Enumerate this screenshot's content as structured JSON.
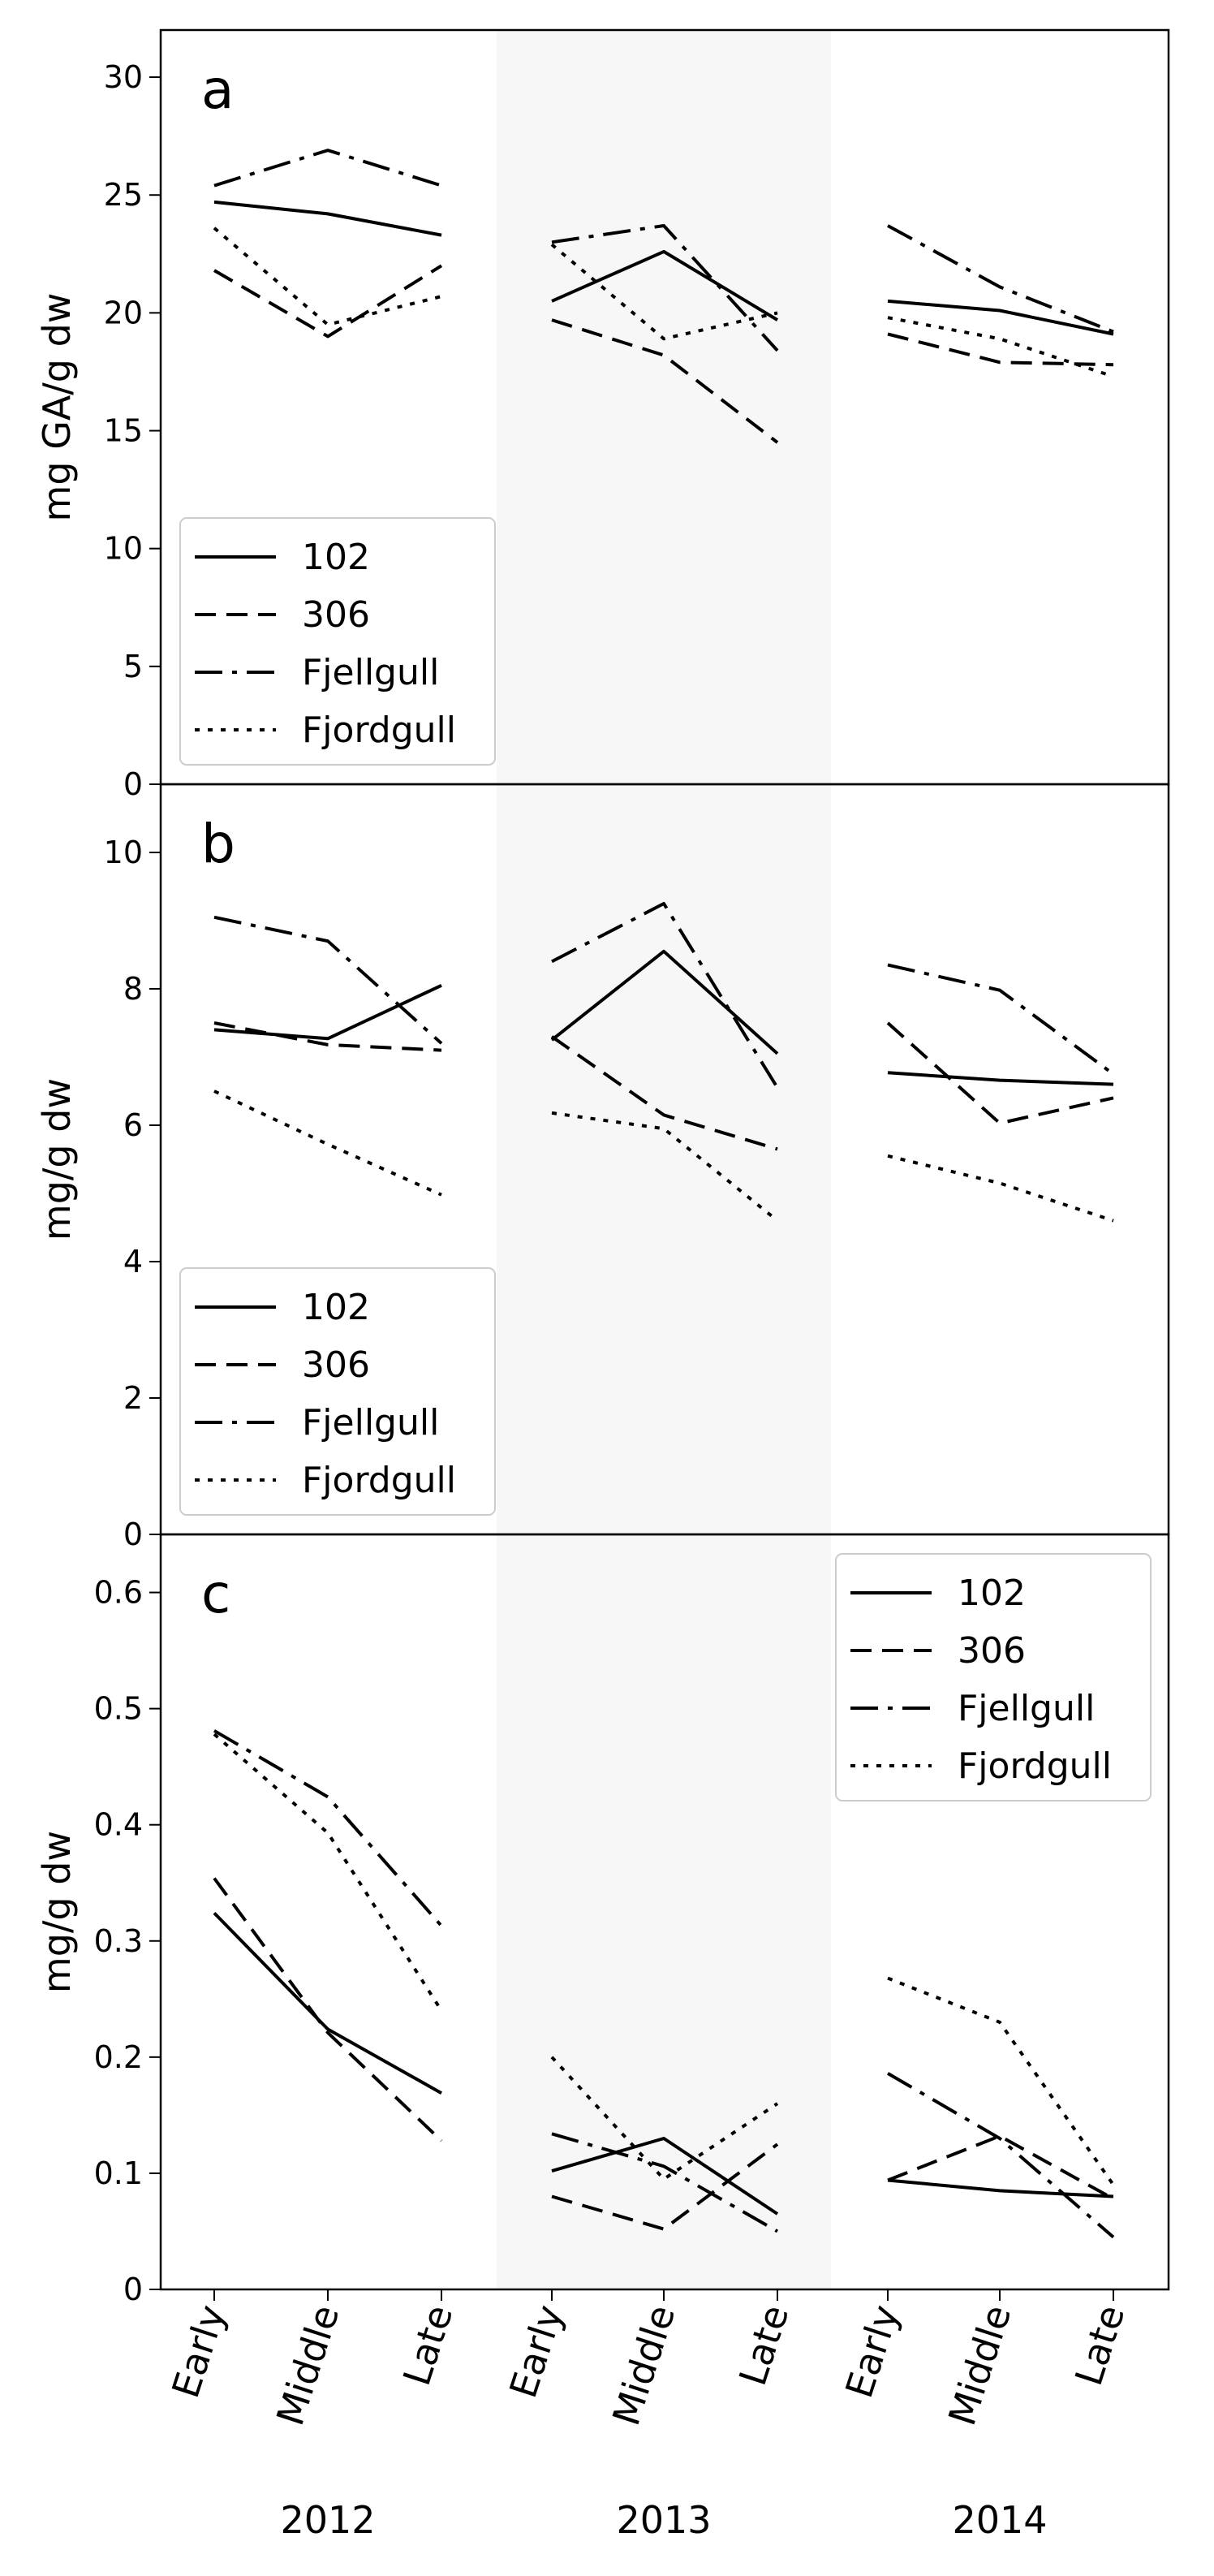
{
  "colors": {
    "line": "#000000",
    "shade": "#f7f7f7",
    "legend_border": "#cccccc"
  },
  "categories": [
    "Early",
    "Middle",
    "Late"
  ],
  "years": [
    "2012",
    "2013",
    "2014"
  ],
  "series_names": [
    "102",
    "306",
    "Fjellgull",
    "Fjordgull"
  ],
  "chart_data": [
    {
      "type": "line",
      "panel": "a",
      "ylabel": "mg GA/g dw",
      "ylim": [
        0,
        32
      ],
      "yticks": [
        0,
        5,
        10,
        15,
        20,
        25,
        30
      ],
      "legend": "lower-left",
      "series": [
        {
          "name": "102",
          "dash": "solid",
          "values": [
            [
              24.7,
              24.2,
              23.3
            ],
            [
              20.5,
              22.6,
              19.7
            ],
            [
              20.5,
              20.1,
              19.1
            ]
          ]
        },
        {
          "name": "306",
          "dash": "dashed",
          "values": [
            [
              21.8,
              19.0,
              22.0
            ],
            [
              19.7,
              18.2,
              14.5
            ],
            [
              19.1,
              17.9,
              17.8
            ]
          ]
        },
        {
          "name": "Fjellgull",
          "dash": "dashdot",
          "values": [
            [
              25.4,
              26.9,
              25.4
            ],
            [
              23.0,
              23.7,
              18.4
            ],
            [
              23.7,
              21.1,
              19.2
            ]
          ]
        },
        {
          "name": "Fjordgull",
          "dash": "dotted",
          "values": [
            [
              23.6,
              19.5,
              20.7
            ],
            [
              22.9,
              18.9,
              20.0
            ],
            [
              19.8,
              18.9,
              17.3
            ]
          ]
        }
      ]
    },
    {
      "type": "line",
      "panel": "b",
      "ylabel": "mg/g dw",
      "ylim": [
        0,
        11
      ],
      "yticks": [
        0,
        2,
        4,
        6,
        8,
        10
      ],
      "legend": "lower-left",
      "series": [
        {
          "name": "102",
          "dash": "solid",
          "values": [
            [
              7.4,
              7.27,
              8.05
            ],
            [
              7.25,
              8.55,
              7.05
            ],
            [
              6.77,
              6.66,
              6.6
            ]
          ]
        },
        {
          "name": "306",
          "dash": "dashed",
          "values": [
            [
              7.5,
              7.18,
              7.1
            ],
            [
              7.3,
              6.15,
              5.65
            ],
            [
              7.5,
              6.03,
              6.4
            ]
          ]
        },
        {
          "name": "Fjellgull",
          "dash": "dashdot",
          "values": [
            [
              9.05,
              8.7,
              7.2
            ],
            [
              8.4,
              9.25,
              6.55
            ],
            [
              8.35,
              7.98,
              6.75
            ]
          ]
        },
        {
          "name": "Fjordgull",
          "dash": "dotted",
          "values": [
            [
              6.5,
              5.72,
              4.98
            ],
            [
              6.18,
              5.95,
              4.6
            ],
            [
              5.55,
              5.15,
              4.6
            ]
          ]
        }
      ]
    },
    {
      "type": "line",
      "panel": "c",
      "ylabel": "mg/g dw",
      "ylim": [
        0,
        0.65
      ],
      "yticks": [
        0.0,
        0.1,
        0.2,
        0.3,
        0.4,
        0.5,
        0.6
      ],
      "legend": "upper-right",
      "series": [
        {
          "name": "102",
          "dash": "solid",
          "values": [
            [
              0.324,
              0.224,
              0.169
            ],
            [
              0.102,
              0.13,
              0.065
            ],
            [
              0.094,
              0.085,
              0.08
            ]
          ]
        },
        {
          "name": "306",
          "dash": "dashed",
          "values": [
            [
              0.354,
              0.221,
              0.128
            ],
            [
              0.08,
              0.052,
              0.125
            ],
            [
              0.094,
              0.132,
              0.078
            ]
          ]
        },
        {
          "name": "Fjellgull",
          "dash": "dashdot",
          "values": [
            [
              0.481,
              0.424,
              0.313
            ],
            [
              0.134,
              0.106,
              0.05
            ],
            [
              0.186,
              0.13,
              0.045
            ]
          ]
        },
        {
          "name": "Fjordgull",
          "dash": "dotted",
          "values": [
            [
              0.478,
              0.393,
              0.24
            ],
            [
              0.2,
              0.095,
              0.16
            ],
            [
              0.268,
              0.23,
              0.09
            ]
          ]
        }
      ]
    }
  ]
}
